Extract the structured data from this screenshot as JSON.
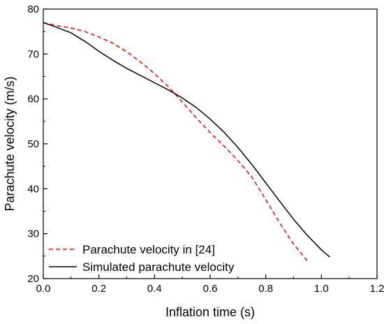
{
  "chart_data": {
    "type": "line",
    "title": "",
    "xlabel": "Inflation time (s)",
    "ylabel": "Parachute velocity (m/s)",
    "xlim": [
      0,
      1.2
    ],
    "ylim": [
      20,
      80
    ],
    "x_ticks": [
      "0.0",
      "0.2",
      "0.4",
      "0.6",
      "0.8",
      "1.0",
      "1.2"
    ],
    "y_ticks": [
      "20",
      "30",
      "40",
      "50",
      "60",
      "70",
      "80"
    ],
    "grid": false,
    "legend_position": "bottom-left",
    "series": [
      {
        "name": "Parachute velocity in [24]",
        "style": "dashed",
        "color": "#ff0000",
        "x": [
          0.0,
          0.05,
          0.1,
          0.15,
          0.2,
          0.25,
          0.3,
          0.35,
          0.4,
          0.45,
          0.5,
          0.55,
          0.6,
          0.65,
          0.7,
          0.75,
          0.8,
          0.85,
          0.9,
          0.95
        ],
        "y": [
          77.0,
          76.3,
          75.8,
          75.0,
          73.8,
          72.4,
          70.5,
          68.2,
          65.6,
          62.7,
          59.3,
          55.8,
          52.5,
          49.5,
          46.3,
          42.6,
          37.6,
          32.4,
          27.7,
          23.9
        ]
      },
      {
        "name": "Simulated parachute velocity",
        "style": "solid",
        "color": "#000000",
        "x": [
          0.0,
          0.05,
          0.1,
          0.15,
          0.2,
          0.25,
          0.3,
          0.35,
          0.4,
          0.45,
          0.5,
          0.55,
          0.6,
          0.65,
          0.7,
          0.75,
          0.8,
          0.85,
          0.9,
          0.95,
          1.0,
          1.03
        ],
        "y": [
          77.0,
          75.9,
          74.7,
          72.8,
          70.6,
          68.6,
          66.8,
          65.2,
          63.6,
          62.0,
          60.2,
          58.1,
          55.5,
          52.6,
          49.2,
          45.4,
          41.3,
          37.2,
          33.2,
          29.6,
          26.4,
          24.8
        ]
      }
    ]
  }
}
